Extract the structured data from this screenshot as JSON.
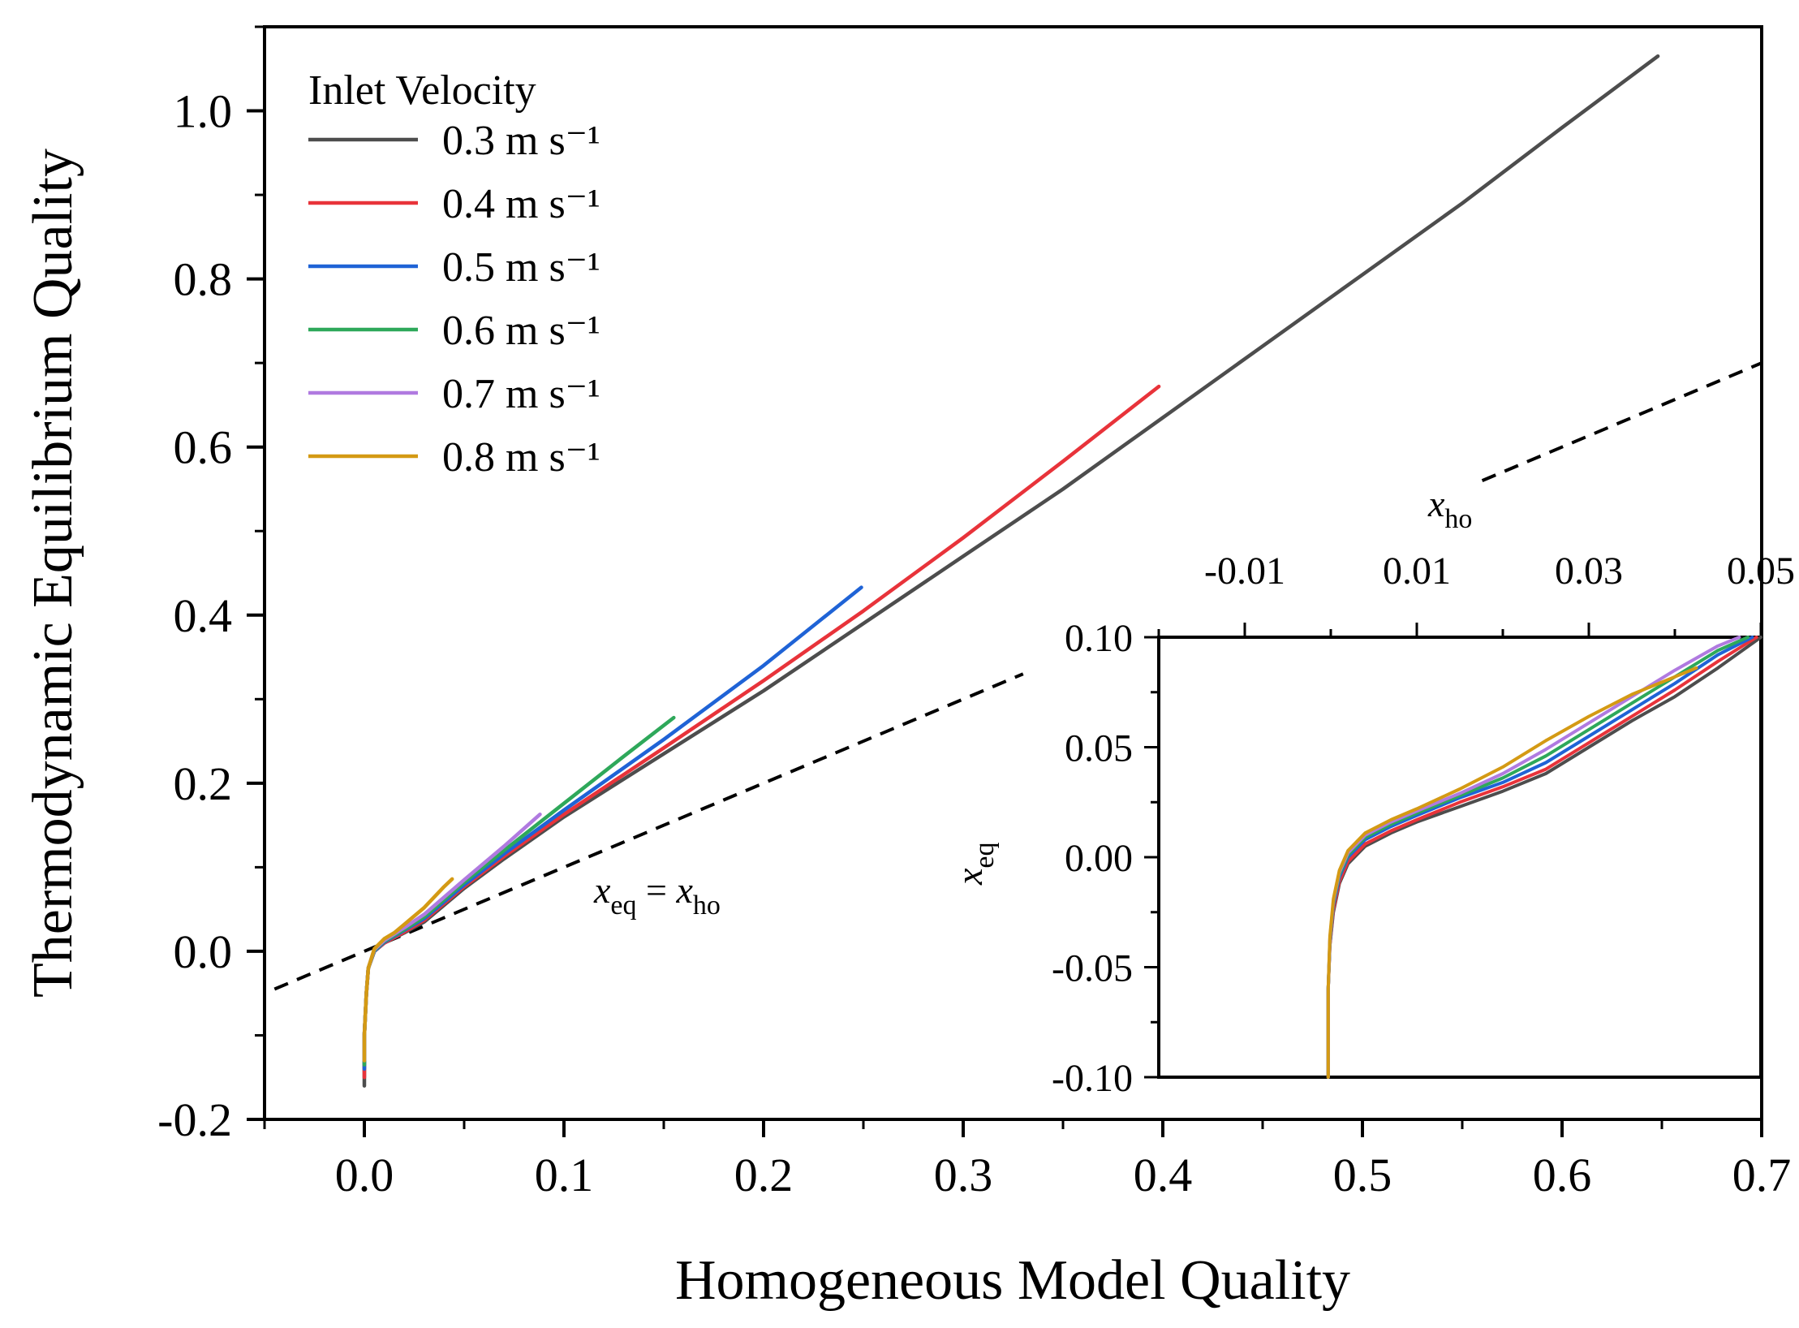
{
  "chart_data": [
    {
      "type": "line",
      "title": "",
      "xlabel": "Homogeneous Model Quality",
      "ylabel": "Thermodynamic Equilibrium Quality",
      "xlim": [
        -0.05,
        0.7
      ],
      "ylim": [
        -0.2,
        1.1
      ],
      "xticks": [
        0.0,
        0.1,
        0.2,
        0.3,
        0.4,
        0.5,
        0.6,
        0.7
      ],
      "xtick_labels": [
        "0.0",
        "0.1",
        "0.2",
        "0.3",
        "0.4",
        "0.5",
        "0.6",
        "0.7"
      ],
      "yticks": [
        -0.2,
        0.0,
        0.2,
        0.4,
        0.6,
        0.8,
        1.0
      ],
      "ytick_labels": [
        "-0.2",
        "0.0",
        "0.2",
        "0.4",
        "0.6",
        "0.8",
        "1.0"
      ],
      "grid": false,
      "legend": {
        "title": "Inlet Velocity",
        "position": "top-left"
      },
      "series": [
        {
          "name": "0.3 m s⁻¹",
          "color": "#4d4d4d",
          "x": [
            0.0,
            0.0,
            0.001,
            0.002,
            0.005,
            0.01,
            0.02,
            0.03,
            0.05,
            0.07,
            0.1,
            0.15,
            0.2,
            0.25,
            0.3,
            0.35,
            0.4,
            0.45,
            0.5,
            0.55,
            0.6,
            0.648
          ],
          "y": [
            -0.16,
            -0.1,
            -0.05,
            -0.02,
            0.0,
            0.01,
            0.022,
            0.035,
            0.075,
            0.11,
            0.16,
            0.235,
            0.31,
            0.39,
            0.47,
            0.55,
            0.635,
            0.72,
            0.805,
            0.89,
            0.98,
            1.065
          ]
        },
        {
          "name": "0.4 m s⁻¹",
          "color": "#e8333a",
          "x": [
            0.0,
            0.0,
            0.001,
            0.002,
            0.005,
            0.01,
            0.02,
            0.03,
            0.05,
            0.07,
            0.1,
            0.15,
            0.2,
            0.25,
            0.3,
            0.35,
            0.398
          ],
          "y": [
            -0.15,
            -0.1,
            -0.05,
            -0.02,
            0.0,
            0.01,
            0.023,
            0.037,
            0.077,
            0.113,
            0.163,
            0.242,
            0.322,
            0.405,
            0.492,
            0.583,
            0.672
          ]
        },
        {
          "name": "0.5 m s⁻¹",
          "color": "#1f63d6",
          "x": [
            0.0,
            0.0,
            0.001,
            0.002,
            0.005,
            0.01,
            0.02,
            0.03,
            0.05,
            0.07,
            0.1,
            0.15,
            0.2,
            0.249
          ],
          "y": [
            -0.14,
            -0.1,
            -0.05,
            -0.02,
            0.0,
            0.011,
            0.025,
            0.039,
            0.079,
            0.116,
            0.168,
            0.252,
            0.34,
            0.433
          ]
        },
        {
          "name": "0.6 m s⁻¹",
          "color": "#2ea85a",
          "x": [
            0.0,
            0.0,
            0.001,
            0.002,
            0.005,
            0.01,
            0.02,
            0.03,
            0.05,
            0.07,
            0.1,
            0.13,
            0.155
          ],
          "y": [
            -0.135,
            -0.1,
            -0.05,
            -0.02,
            0.001,
            0.012,
            0.026,
            0.041,
            0.082,
            0.12,
            0.176,
            0.232,
            0.278
          ]
        },
        {
          "name": "0.7 m s⁻¹",
          "color": "#b07ae0",
          "x": [
            0.0,
            0.0,
            0.001,
            0.002,
            0.005,
            0.01,
            0.02,
            0.03,
            0.05,
            0.07,
            0.088
          ],
          "y": [
            -0.13,
            -0.1,
            -0.05,
            -0.02,
            0.002,
            0.013,
            0.028,
            0.044,
            0.085,
            0.125,
            0.163
          ]
        },
        {
          "name": "0.8 m s⁻¹",
          "color": "#d49a14",
          "x": [
            0.0,
            0.0,
            0.001,
            0.002,
            0.005,
            0.01,
            0.015,
            0.02,
            0.03,
            0.04,
            0.044
          ],
          "y": [
            -0.13,
            -0.1,
            -0.05,
            -0.02,
            0.003,
            0.015,
            0.022,
            0.032,
            0.052,
            0.077,
            0.086
          ]
        }
      ],
      "reference_line": {
        "label_main": "x",
        "label_main_sub": "eq",
        "label_eq": " = ",
        "label_rhs": "x",
        "label_rhs_sub": "ho",
        "style": "dashed",
        "color": "#000000",
        "x": [
          -0.05,
          0.7
        ],
        "y": [
          -0.05,
          0.7
        ]
      }
    },
    {
      "type": "line",
      "title": "",
      "inset": true,
      "xlabel": "x",
      "xlabel_sub": "ho",
      "ylabel": "x",
      "ylabel_sub": "eq",
      "xlim": [
        -0.02,
        0.05
      ],
      "ylim": [
        -0.1,
        0.1
      ],
      "xticks": [
        -0.01,
        0.01,
        0.03,
        0.05
      ],
      "xtick_labels": [
        "-0.01",
        "0.01",
        "0.03",
        "0.05"
      ],
      "yticks": [
        -0.1,
        -0.05,
        0.0,
        0.05,
        0.1
      ],
      "ytick_labels": [
        "-0.10",
        "-0.05",
        "0.00",
        "0.05",
        "0.10"
      ],
      "series": [
        {
          "name": "0.3 m s⁻¹",
          "color": "#4d4d4d",
          "x": [
            -0.0003,
            -0.0003,
            -0.0001,
            0.0003,
            0.001,
            0.002,
            0.004,
            0.007,
            0.01,
            0.015,
            0.02,
            0.025,
            0.03,
            0.035,
            0.04,
            0.045,
            0.05
          ],
          "y": [
            -0.1,
            -0.06,
            -0.04,
            -0.025,
            -0.012,
            -0.003,
            0.005,
            0.011,
            0.016,
            0.023,
            0.03,
            0.038,
            0.05,
            0.062,
            0.073,
            0.086,
            0.1
          ]
        },
        {
          "name": "0.4 m s⁻¹",
          "color": "#e8333a",
          "x": [
            -0.0003,
            -0.0003,
            -0.0001,
            0.0003,
            0.001,
            0.002,
            0.004,
            0.007,
            0.01,
            0.015,
            0.02,
            0.025,
            0.03,
            0.035,
            0.04,
            0.045,
            0.0495
          ],
          "y": [
            -0.1,
            -0.06,
            -0.04,
            -0.024,
            -0.011,
            -0.002,
            0.006,
            0.012,
            0.017,
            0.025,
            0.032,
            0.04,
            0.052,
            0.064,
            0.076,
            0.089,
            0.1
          ]
        },
        {
          "name": "0.5 m s⁻¹",
          "color": "#1f63d6",
          "x": [
            -0.0003,
            -0.0003,
            -0.0001,
            0.0003,
            0.001,
            0.002,
            0.004,
            0.007,
            0.01,
            0.015,
            0.02,
            0.025,
            0.03,
            0.035,
            0.04,
            0.045,
            0.049
          ],
          "y": [
            -0.1,
            -0.06,
            -0.039,
            -0.022,
            -0.009,
            0.0,
            0.008,
            0.014,
            0.019,
            0.027,
            0.034,
            0.043,
            0.055,
            0.067,
            0.079,
            0.092,
            0.1
          ]
        },
        {
          "name": "0.6 m s⁻¹",
          "color": "#2ea85a",
          "x": [
            -0.0003,
            -0.0003,
            -0.0001,
            0.0003,
            0.001,
            0.002,
            0.004,
            0.007,
            0.01,
            0.015,
            0.02,
            0.025,
            0.03,
            0.035,
            0.04,
            0.045,
            0.0485
          ],
          "y": [
            -0.1,
            -0.06,
            -0.038,
            -0.021,
            -0.008,
            0.001,
            0.009,
            0.015,
            0.02,
            0.028,
            0.036,
            0.046,
            0.058,
            0.07,
            0.082,
            0.094,
            0.1
          ]
        },
        {
          "name": "0.7 m s⁻¹",
          "color": "#b07ae0",
          "x": [
            -0.0003,
            -0.0003,
            -0.0001,
            0.0003,
            0.001,
            0.002,
            0.004,
            0.007,
            0.01,
            0.015,
            0.02,
            0.025,
            0.03,
            0.035,
            0.04,
            0.045,
            0.0475
          ],
          "y": [
            -0.1,
            -0.06,
            -0.037,
            -0.02,
            -0.007,
            0.002,
            0.01,
            0.016,
            0.021,
            0.029,
            0.038,
            0.049,
            0.061,
            0.073,
            0.085,
            0.096,
            0.1
          ]
        },
        {
          "name": "0.8 m s⁻¹",
          "color": "#d49a14",
          "x": [
            -0.0003,
            -0.0003,
            -0.0001,
            0.0003,
            0.001,
            0.002,
            0.004,
            0.007,
            0.01,
            0.015,
            0.02,
            0.025,
            0.03,
            0.035,
            0.04,
            0.0425
          ],
          "y": [
            -0.1,
            -0.06,
            -0.036,
            -0.019,
            -0.006,
            0.003,
            0.011,
            0.017,
            0.022,
            0.031,
            0.041,
            0.053,
            0.064,
            0.074,
            0.082,
            0.086
          ]
        }
      ]
    }
  ]
}
